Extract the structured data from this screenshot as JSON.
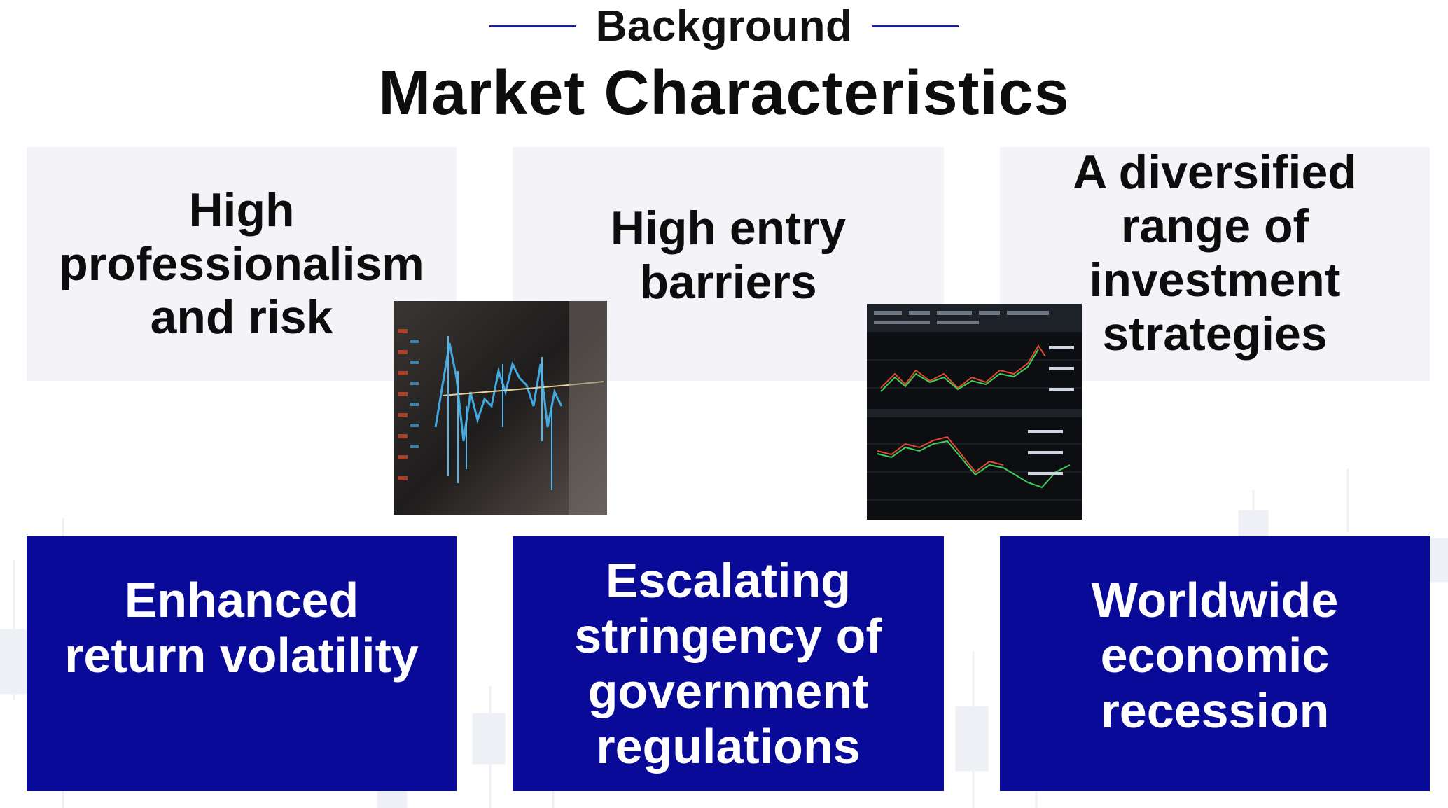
{
  "header": {
    "eyebrow": "Background",
    "title": "Market Characteristics"
  },
  "top_boxes": [
    {
      "text": "High professionalism and risk"
    },
    {
      "text": "High entry barriers"
    },
    {
      "text": "A diversified range of investment strategies"
    }
  ],
  "bottom_boxes": [
    {
      "text": "Enhanced return volatility"
    },
    {
      "text": "Escalating stringency of government regulations"
    },
    {
      "text": "Worldwide economic recession"
    }
  ],
  "images": [
    {
      "name": "stock-chart-photo-left",
      "description_icon": "trading-chart-image"
    },
    {
      "name": "stock-chart-photo-right",
      "description_icon": "trading-chart-image"
    }
  ],
  "colors": {
    "accent": "#0a0a99",
    "light_box": "#f4f4f8",
    "rule": "#1a1f9e"
  }
}
